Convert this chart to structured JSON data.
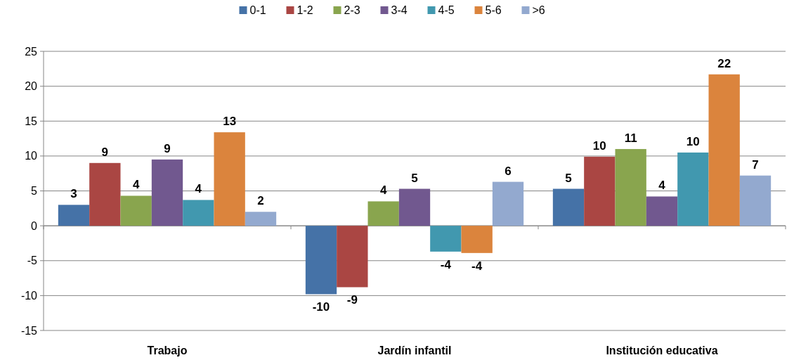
{
  "chart_data": {
    "type": "bar",
    "categories": [
      "Trabajo",
      "Jardín infantil",
      "Institución educativa"
    ],
    "series": [
      {
        "name": "0-1",
        "color": "#4572a7",
        "values": [
          3.0,
          -9.8,
          5.3
        ],
        "value_labels": [
          "3",
          "-10",
          "5"
        ]
      },
      {
        "name": "1-2",
        "color": "#aa4643",
        "values": [
          9.0,
          -8.8,
          9.9
        ],
        "value_labels": [
          "9",
          "-9",
          "10"
        ]
      },
      {
        "name": "2-3",
        "color": "#89a54e",
        "values": [
          4.3,
          3.5,
          11.0
        ],
        "value_labels": [
          "4",
          "4",
          "11"
        ]
      },
      {
        "name": "3-4",
        "color": "#71588f",
        "values": [
          9.5,
          5.3,
          4.2
        ],
        "value_labels": [
          "9",
          "5",
          "4"
        ]
      },
      {
        "name": "4-5",
        "color": "#4198af",
        "values": [
          3.7,
          -3.7,
          10.5
        ],
        "value_labels": [
          "4",
          "-4",
          "10"
        ]
      },
      {
        "name": "5-6",
        "color": "#db843d",
        "values": [
          13.4,
          -3.9,
          21.7
        ],
        "value_labels": [
          "13",
          "-4",
          "22"
        ]
      },
      {
        "name": ">6",
        "color": "#93a9cf",
        "values": [
          2.0,
          6.3,
          7.2
        ],
        "value_labels": [
          "2",
          "6",
          "7"
        ]
      }
    ],
    "ylim": [
      -15,
      25
    ],
    "yticks": [
      -15,
      -10,
      -5,
      0,
      5,
      10,
      15,
      20,
      25
    ],
    "grid": "y",
    "legend": "top"
  }
}
